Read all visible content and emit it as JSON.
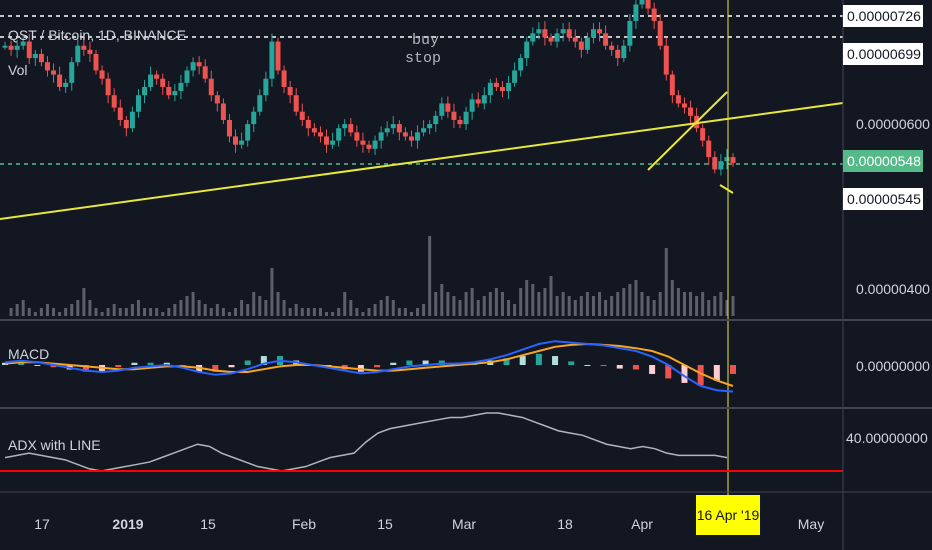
{
  "header": {
    "symbol_title": "QST / Bitcoin, 1D, BINANCE",
    "volume_label": "Vol"
  },
  "annotation": {
    "line1": "buy",
    "line2": "stop"
  },
  "price_axis": {
    "boxes": [
      {
        "value": "0.00000726",
        "style": "white"
      },
      {
        "value": "0.00000699",
        "style": "white"
      },
      {
        "value": "0.00000548",
        "style": "green"
      },
      {
        "value": "0.00000545",
        "style": "white"
      }
    ],
    "plain": [
      "0.00000600",
      "0.00000400"
    ]
  },
  "macd_panel": {
    "label": "MACD",
    "axis_value": "0.00000000"
  },
  "adx_panel": {
    "label": "ADX with LINE",
    "axis_value": "40.00000000"
  },
  "time_axis": {
    "ticks": [
      {
        "label": "17"
      },
      {
        "label": "2019",
        "bold": true
      },
      {
        "label": "15"
      },
      {
        "label": "Feb"
      },
      {
        "label": "15"
      },
      {
        "label": "Mar"
      },
      {
        "label": "18"
      },
      {
        "label": "Apr"
      },
      {
        "label": "May"
      }
    ],
    "highlight_date": "16 Apr '19"
  },
  "colors": {
    "background": "#131722",
    "up_candle": "#26a69a",
    "down_candle": "#ef5350",
    "trendline": "#e8e83a",
    "macd_line": "#2962ff",
    "signal_line": "#f5a623",
    "adx_line": "#b2b5be",
    "adx_level": "#ff0000",
    "current_price": "#55b98a"
  },
  "chart_data": [
    {
      "type": "candlestick",
      "title": "QST / Bitcoin, 1D, BINANCE",
      "y_labels": [
        "0.00000726",
        "0.00000699",
        "0.00000600",
        "0.00000548",
        "0.00000545",
        "0.00000400"
      ],
      "ylim": [
        3.8e-06,
        7.5e-06
      ],
      "current_price": 5.48e-06,
      "horizontal_levels": [
        7.26e-06,
        6.99e-06,
        5.48e-06
      ],
      "candles_close": [
        6.9,
        6.85,
        6.9,
        6.95,
        6.75,
        6.8,
        6.7,
        6.6,
        6.55,
        6.4,
        6.45,
        6.7,
        6.9,
        6.85,
        6.8,
        6.6,
        6.5,
        6.3,
        6.15,
        6.0,
        5.9,
        6.1,
        6.3,
        6.4,
        6.55,
        6.5,
        6.4,
        6.3,
        6.35,
        6.45,
        6.6,
        6.7,
        6.65,
        6.5,
        6.3,
        6.2,
        6.0,
        5.8,
        5.7,
        5.75,
        5.95,
        6.1,
        6.3,
        6.5,
        6.95,
        6.6,
        6.4,
        6.3,
        6.1,
        6.0,
        5.9,
        5.85,
        5.8,
        5.7,
        5.75,
        5.9,
        5.95,
        5.85,
        5.75,
        5.7,
        5.65,
        5.75,
        5.85,
        5.9,
        5.95,
        5.85,
        5.8,
        5.75,
        5.85,
        5.9,
        5.95,
        6.05,
        6.2,
        6.1,
        6.0,
        5.95,
        6.1,
        6.25,
        6.2,
        6.3,
        6.45,
        6.4,
        6.35,
        6.45,
        6.6,
        6.75,
        6.95,
        7.05,
        7.1,
        7.0,
        6.95,
        7.05,
        7.1,
        7.0,
        6.95,
        6.85,
        7.0,
        7.1,
        7.05,
        6.9,
        6.85,
        6.75,
        6.9,
        7.2,
        7.4,
        7.5,
        7.35,
        7.2,
        6.9,
        6.55,
        6.3,
        6.2,
        6.15,
        6.05,
        5.9,
        5.75,
        5.55,
        5.4,
        5.5,
        5.55,
        5.48
      ],
      "volume_spikes": [
        0.0,
        0.1,
        0.15,
        0.2,
        0.1,
        0.05,
        0.1,
        0.15,
        0.1,
        0.05,
        0.1,
        0.15,
        0.2,
        0.35,
        0.2,
        0.1,
        0.05,
        0.1,
        0.15,
        0.1,
        0.1,
        0.15,
        0.2,
        0.1,
        0.1,
        0.1,
        0.05,
        0.1,
        0.15,
        0.2,
        0.25,
        0.3,
        0.2,
        0.15,
        0.1,
        0.15,
        0.1,
        0.05,
        0.1,
        0.2,
        0.15,
        0.3,
        0.25,
        0.2,
        0.6,
        0.3,
        0.2,
        0.1,
        0.15,
        0.1,
        0.1,
        0.1,
        0.1,
        0.05,
        0.05,
        0.1,
        0.3,
        0.2,
        0.1,
        0.05,
        0.1,
        0.15,
        0.2,
        0.25,
        0.2,
        0.1,
        0.1,
        0.05,
        0.1,
        0.15,
        1.0,
        0.3,
        0.4,
        0.3,
        0.25,
        0.2,
        0.3,
        0.35,
        0.2,
        0.25,
        0.3,
        0.35,
        0.3,
        0.2,
        0.15,
        0.35,
        0.45,
        0.4,
        0.3,
        0.35,
        0.5,
        0.25,
        0.3,
        0.25,
        0.2,
        0.25,
        0.3,
        0.25,
        0.3,
        0.2,
        0.25,
        0.3,
        0.35,
        0.4,
        0.45,
        0.3,
        0.25,
        0.2,
        0.3,
        0.85,
        0.45,
        0.35,
        0.3,
        0.3,
        0.25,
        0.3,
        0.2,
        0.25,
        0.3,
        0.2,
        0.25
      ]
    },
    {
      "type": "line",
      "title": "MACD",
      "y_labels": [
        "0.00000000"
      ],
      "series": [
        {
          "name": "MACD",
          "values": [
            0.1,
            0.15,
            0.1,
            0.0,
            -0.1,
            -0.2,
            -0.25,
            -0.2,
            -0.1,
            -0.05,
            0.0,
            -0.1,
            -0.25,
            -0.35,
            -0.3,
            -0.15,
            0.05,
            0.15,
            0.1,
            0.0,
            -0.1,
            -0.2,
            -0.3,
            -0.25,
            -0.15,
            -0.05,
            0.0,
            0.05,
            0.05,
            0.1,
            0.2,
            0.35,
            0.55,
            0.75,
            0.85,
            0.8,
            0.75,
            0.7,
            0.6,
            0.5,
            0.3,
            0.0,
            -0.4,
            -0.75,
            -0.9,
            -0.95
          ]
        },
        {
          "name": "Signal",
          "values": [
            0.05,
            0.1,
            0.1,
            0.05,
            0.0,
            -0.05,
            -0.1,
            -0.15,
            -0.15,
            -0.1,
            -0.05,
            -0.05,
            -0.1,
            -0.2,
            -0.25,
            -0.25,
            -0.15,
            -0.05,
            0.0,
            0.0,
            -0.05,
            -0.1,
            -0.15,
            -0.2,
            -0.2,
            -0.15,
            -0.1,
            -0.05,
            0.0,
            0.05,
            0.1,
            0.2,
            0.35,
            0.5,
            0.65,
            0.72,
            0.75,
            0.72,
            0.68,
            0.6,
            0.5,
            0.3,
            0.0,
            -0.3,
            -0.55,
            -0.75
          ]
        }
      ]
    },
    {
      "type": "line",
      "title": "ADX with LINE",
      "y_labels": [
        "40.00000000"
      ],
      "level": 20,
      "series": [
        {
          "name": "ADX",
          "values": [
            26,
            27,
            28,
            27,
            26,
            25,
            23,
            21,
            20,
            21,
            22,
            23,
            24,
            26,
            28,
            30,
            32,
            31,
            28,
            26,
            24,
            22,
            21,
            20,
            21,
            22,
            24,
            26,
            27,
            28,
            33,
            37,
            39,
            40,
            41,
            42,
            43,
            44,
            44,
            45,
            46,
            46,
            45,
            44,
            42,
            40,
            38,
            37,
            36,
            34,
            32,
            31,
            30,
            31,
            30,
            28,
            27,
            27,
            27,
            27,
            26
          ]
        }
      ]
    }
  ]
}
